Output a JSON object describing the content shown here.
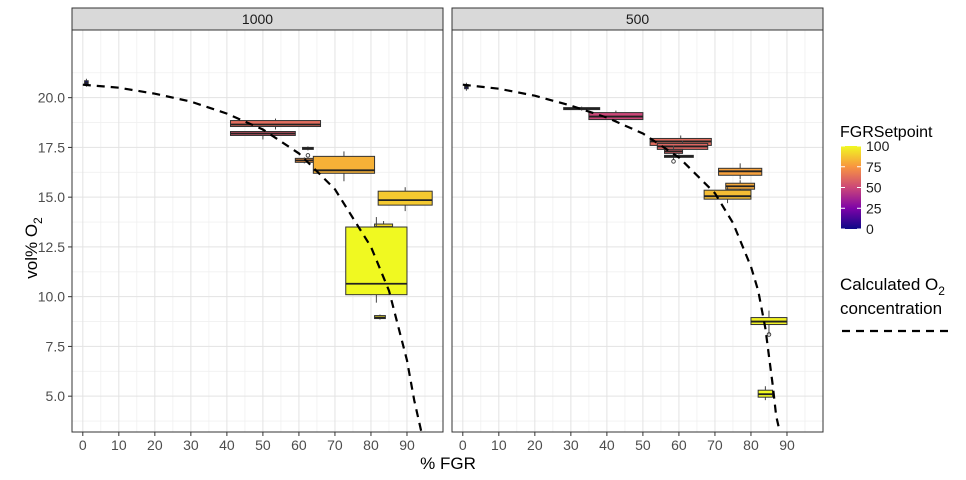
{
  "chart_data": {
    "type": "boxplot",
    "xlabel": "% FGR",
    "ylabel_main": "vol% O",
    "ylabel_sub": "2",
    "xlim": [
      -3,
      100
    ],
    "ylim": [
      3.2,
      23.4
    ],
    "x_ticks": [
      0,
      10,
      20,
      30,
      40,
      50,
      60,
      70,
      80,
      90
    ],
    "y_ticks": [
      5.0,
      7.5,
      10.0,
      12.5,
      15.0,
      17.5,
      20.0
    ],
    "y_tick_labels": [
      "5.0",
      "7.5",
      "10.0",
      "12.5",
      "15.0",
      "17.5",
      "20.0"
    ],
    "grid": true,
    "colorbar": {
      "title": "FGRSetpoint",
      "range": [
        0,
        100
      ],
      "ticks": [
        100,
        75,
        50,
        25,
        0
      ],
      "tick_labels": [
        "100",
        "75",
        "50",
        "25",
        "0"
      ],
      "stops": [
        "#0d0887",
        "#7e03a8",
        "#cc4778",
        "#f89540",
        "#f0f921"
      ]
    },
    "line_legend": {
      "title_main": "Calculated O",
      "title_sub": "2",
      "title_line2": "concentration",
      "style": "dashed"
    },
    "panels": [
      {
        "title": "1000",
        "curve": [
          [
            0,
            20.65
          ],
          [
            10,
            20.5
          ],
          [
            20,
            20.2
          ],
          [
            30,
            19.8
          ],
          [
            40,
            19.2
          ],
          [
            50,
            18.4
          ],
          [
            60,
            17.2
          ],
          [
            70,
            15.4
          ],
          [
            80,
            12.5
          ],
          [
            85,
            10.3
          ],
          [
            90,
            6.8
          ],
          [
            92,
            4.8
          ],
          [
            94,
            3.2
          ]
        ],
        "boxes": [
          {
            "setpoint": 0,
            "xmin": 0.5,
            "xmax": 1.5,
            "q1": 20.65,
            "med": 20.75,
            "q3": 20.85,
            "wlo": 20.55,
            "whi": 20.95,
            "out": []
          },
          {
            "setpoint": 62,
            "xmin": 41,
            "xmax": 66,
            "q1": 18.55,
            "med": 18.65,
            "q3": 18.85,
            "wlo": 18.4,
            "whi": 18.95,
            "out": []
          },
          {
            "setpoint": 55,
            "xmin": 41,
            "xmax": 59,
            "q1": 18.1,
            "med": 18.2,
            "q3": 18.3,
            "wlo": 17.9,
            "whi": 18.45,
            "out": []
          },
          {
            "setpoint": 70,
            "xmin": 61,
            "xmax": 64,
            "q1": 17.4,
            "med": 17.45,
            "q3": 17.5,
            "wlo": 17.35,
            "whi": 17.55,
            "out": [
              17.1
            ]
          },
          {
            "setpoint": 75,
            "xmin": 59,
            "xmax": 64,
            "q1": 16.75,
            "med": 16.85,
            "q3": 16.95,
            "wlo": 16.7,
            "whi": 17.0,
            "out": []
          },
          {
            "setpoint": 82,
            "xmin": 64,
            "xmax": 81,
            "q1": 16.2,
            "med": 16.35,
            "q3": 17.05,
            "wlo": 15.8,
            "whi": 17.3,
            "out": []
          },
          {
            "setpoint": 88,
            "xmin": 82,
            "xmax": 97,
            "q1": 14.6,
            "med": 14.85,
            "q3": 15.3,
            "wlo": 14.3,
            "whi": 15.5,
            "out": []
          },
          {
            "setpoint": 92,
            "xmin": 81,
            "xmax": 86,
            "q1": 13.3,
            "med": 13.5,
            "q3": 13.65,
            "wlo": 13.1,
            "whi": 13.8,
            "out": []
          },
          {
            "setpoint": 100,
            "xmin": 73,
            "xmax": 90,
            "q1": 10.1,
            "med": 10.65,
            "q3": 13.5,
            "wlo": 9.7,
            "whi": 14.0,
            "out": []
          },
          {
            "setpoint": 95,
            "xmin": 81,
            "xmax": 84,
            "q1": 8.9,
            "med": 8.95,
            "q3": 9.05,
            "wlo": 8.85,
            "whi": 9.1,
            "out": []
          }
        ]
      },
      {
        "title": "500",
        "curve": [
          [
            0,
            20.65
          ],
          [
            10,
            20.45
          ],
          [
            20,
            20.1
          ],
          [
            30,
            19.6
          ],
          [
            40,
            19.0
          ],
          [
            50,
            18.2
          ],
          [
            60,
            17.0
          ],
          [
            70,
            15.2
          ],
          [
            75,
            13.7
          ],
          [
            80,
            11.5
          ],
          [
            82,
            10.3
          ],
          [
            84,
            8.4
          ],
          [
            86,
            5.6
          ],
          [
            87,
            4.0
          ],
          [
            88,
            3.2
          ]
        ],
        "boxes": [
          {
            "setpoint": 0,
            "xmin": 0.5,
            "xmax": 1.5,
            "q1": 20.45,
            "med": 20.55,
            "q3": 20.65,
            "wlo": 20.35,
            "whi": 20.75,
            "out": []
          },
          {
            "setpoint": 45,
            "xmin": 28,
            "xmax": 38,
            "q1": 19.4,
            "med": 19.45,
            "q3": 19.5,
            "wlo": 19.35,
            "whi": 19.55,
            "out": []
          },
          {
            "setpoint": 50,
            "xmin": 35,
            "xmax": 50,
            "q1": 18.9,
            "med": 19.05,
            "q3": 19.25,
            "wlo": 18.8,
            "whi": 19.35,
            "out": []
          },
          {
            "setpoint": 62,
            "xmin": 52,
            "xmax": 69,
            "q1": 17.6,
            "med": 17.8,
            "q3": 17.95,
            "wlo": 17.45,
            "whi": 18.1,
            "out": []
          },
          {
            "setpoint": 60,
            "xmin": 54,
            "xmax": 68,
            "q1": 17.4,
            "med": 17.55,
            "q3": 17.7,
            "wlo": 17.25,
            "whi": 17.85,
            "out": []
          },
          {
            "setpoint": 58,
            "xmin": 56,
            "xmax": 61,
            "q1": 17.2,
            "med": 17.3,
            "q3": 17.4,
            "wlo": 16.9,
            "whi": 17.6,
            "out": [
              16.8
            ]
          },
          {
            "setpoint": 30,
            "xmin": 56,
            "xmax": 64,
            "q1": 17.0,
            "med": 17.05,
            "q3": 17.1,
            "wlo": 16.95,
            "whi": 17.15,
            "out": []
          },
          {
            "setpoint": 78,
            "xmin": 71,
            "xmax": 83,
            "q1": 16.1,
            "med": 16.3,
            "q3": 16.45,
            "wlo": 15.9,
            "whi": 16.7,
            "out": []
          },
          {
            "setpoint": 80,
            "xmin": 73,
            "xmax": 81,
            "q1": 15.4,
            "med": 15.55,
            "q3": 15.7,
            "wlo": 15.2,
            "whi": 15.85,
            "out": []
          },
          {
            "setpoint": 85,
            "xmin": 67,
            "xmax": 80,
            "q1": 14.9,
            "med": 15.05,
            "q3": 15.35,
            "wlo": 14.7,
            "whi": 15.5,
            "out": []
          },
          {
            "setpoint": 98,
            "xmin": 80,
            "xmax": 90,
            "q1": 8.6,
            "med": 8.75,
            "q3": 8.95,
            "wlo": 8.1,
            "whi": 9.3,
            "out": [
              8.1
            ]
          },
          {
            "setpoint": 100,
            "xmin": 82,
            "xmax": 86,
            "q1": 4.95,
            "med": 5.1,
            "q3": 5.3,
            "wlo": 4.8,
            "whi": 5.5,
            "out": []
          }
        ]
      }
    ]
  }
}
